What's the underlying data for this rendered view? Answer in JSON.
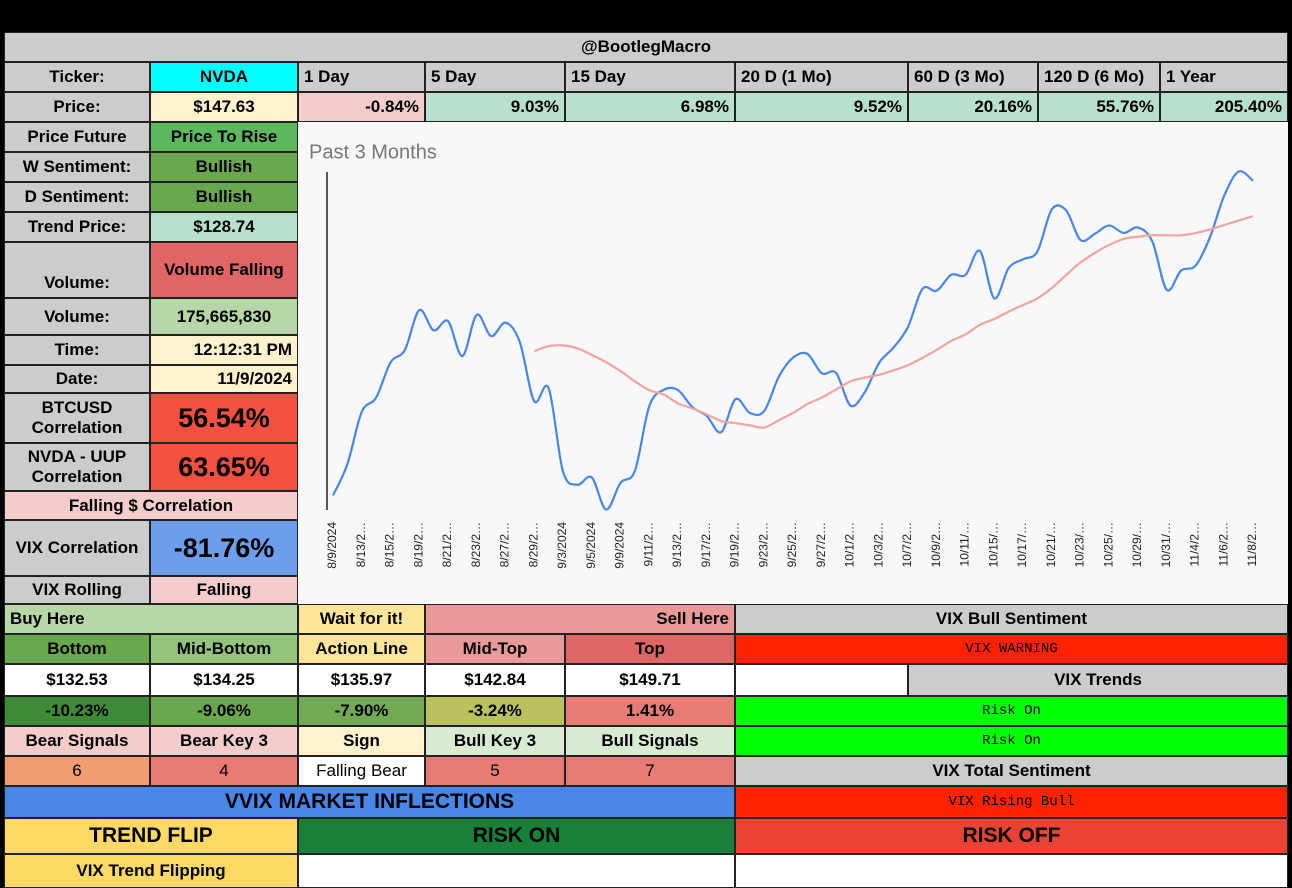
{
  "header": {
    "title": "@BootlegMacro"
  },
  "quote": {
    "ticker_label": "Ticker:",
    "ticker": "NVDA",
    "price_label": "Price:",
    "price": "$147.63",
    "periods": [
      "1 Day",
      "5 Day",
      "15 Day",
      "20 D (1 Mo)",
      "60 D (3 Mo)",
      "120 D (6 Mo)",
      "1 Year"
    ],
    "changes": [
      "-0.84%",
      "9.03%",
      "6.98%",
      "9.52%",
      "20.16%",
      "55.76%",
      "205.40%"
    ]
  },
  "indicators": [
    {
      "label": "Price Future",
      "value": "Price To Rise"
    },
    {
      "label": "W Sentiment:",
      "value": "Bullish"
    },
    {
      "label": "D Sentiment:",
      "value": "Bullish"
    },
    {
      "label": "Trend Price:",
      "value": "$128.74"
    },
    {
      "label": "Volume:",
      "value": "Volume Falling"
    },
    {
      "label": "Volume:",
      "value": "175,665,830"
    },
    {
      "label": "Time:",
      "value": "12:12:31 PM"
    },
    {
      "label": "Date:",
      "value": "11/9/2024"
    },
    {
      "label": "BTCUSD Correlation",
      "value": "56.54%"
    },
    {
      "label": "NVDA - UUP Correlation",
      "value": "63.65%"
    },
    {
      "label": "Falling $ Correlation"
    },
    {
      "label": "VIX Correlation",
      "value": "-81.76%"
    },
    {
      "label": "VIX Rolling",
      "value": "Falling"
    }
  ],
  "zones": {
    "buy": "Buy Here",
    "wait": "Wait for it!",
    "sell": "Sell Here",
    "levels": [
      {
        "name": "Bottom",
        "price": "$132.53",
        "change": "-10.23%"
      },
      {
        "name": "Mid-Bottom",
        "price": "$134.25",
        "change": "-9.06%"
      },
      {
        "name": "Action Line",
        "price": "$135.97",
        "change": "-7.90%"
      },
      {
        "name": "Mid-Top",
        "price": "$142.84",
        "change": "-3.24%"
      },
      {
        "name": "Top",
        "price": "$149.71",
        "change": "1.41%"
      }
    ]
  },
  "signals": {
    "headers": [
      "Bear Signals",
      "Bear Key 3",
      "Sign",
      "Bull Key 3",
      "Bull Signals"
    ],
    "values": [
      6,
      4,
      "Falling Bear",
      5,
      7
    ]
  },
  "vix": {
    "bull_sentiment": "VIX Bull Sentiment",
    "warning": "VIX WARNING",
    "trends": "VIX Trends",
    "trend_values": [
      "Risk On",
      "Risk On"
    ],
    "total_sentiment": "VIX Total Sentiment",
    "total_value": "VIX Rising Bull"
  },
  "inflections": {
    "title": "VVIX MARKET INFLECTIONS",
    "trend_flip": "TREND FLIP",
    "risk_on": "RISK ON",
    "risk_off": "RISK OFF",
    "status": "VIX Trend Flipping"
  },
  "chart_data": {
    "type": "line",
    "title": "Past 3 Months",
    "categories": [
      "8/9/2024",
      null,
      "8/13/2…",
      null,
      "8/15/2…",
      null,
      "8/19/2…",
      null,
      "8/21/2…",
      null,
      "8/23/2…",
      null,
      "8/27/2…",
      null,
      "8/29/2…",
      null,
      "9/3/2024",
      null,
      "9/5/2024",
      null,
      "9/9/2024",
      null,
      "9/11/2…",
      null,
      "9/13/2…",
      null,
      "9/17/2…",
      null,
      "9/19/2…",
      null,
      "9/23/2…",
      null,
      "9/25/2…",
      null,
      "9/27/2…",
      null,
      "10/1/2…",
      null,
      "10/3/2…",
      null,
      "10/7/2…",
      null,
      "10/9/2…",
      null,
      "10/11/…",
      null,
      "10/15/…",
      null,
      "10/17/…",
      null,
      "10/21/…",
      null,
      "10/23/…",
      null,
      "10/25/…",
      null,
      "10/29/…",
      null,
      "10/31/…",
      null,
      "11/4/2…",
      null,
      "11/6/2…",
      null,
      "11/8/2…"
    ],
    "series": [
      {
        "color": "#4a86e8",
        "values": [
          104.75,
          109.02,
          116.14,
          118.08,
          122.86,
          124.58,
          130.0,
          127.25,
          128.5,
          123.74,
          129.37,
          126.46,
          128.3,
          125.61,
          117.59,
          119.37,
          108.0,
          106.21,
          107.21,
          102.83,
          106.47,
          108.1,
          116.91,
          119.14,
          119.1,
          116.78,
          115.59,
          113.37,
          117.87,
          116.0,
          116.26,
          120.87,
          123.51,
          124.04,
          121.4,
          121.44,
          117.0,
          118.85,
          122.85,
          124.92,
          127.72,
          132.89,
          132.65,
          134.81,
          134.8,
          138.07,
          131.6,
          135.72,
          136.93,
          138.0,
          143.71,
          143.59,
          139.56,
          140.41,
          141.54,
          140.52,
          141.25,
          139.34,
          132.76,
          135.4,
          136.05,
          139.91,
          145.61,
          148.88,
          147.63
        ]
      },
      {
        "color": "#f4a3a0",
        "values": [
          null,
          null,
          null,
          null,
          null,
          null,
          null,
          null,
          null,
          null,
          null,
          null,
          null,
          null,
          124.4,
          125.1,
          125.2,
          124.8,
          123.9,
          122.9,
          121.7,
          120.3,
          119.1,
          118.5,
          117.3,
          116.6,
          115.8,
          114.9,
          114.6,
          114.3,
          114.0,
          115.0,
          116.0,
          117.2,
          118.1,
          119.2,
          120.3,
          120.8,
          121.2,
          121.8,
          122.5,
          123.5,
          124.6,
          125.8,
          126.7,
          128.0,
          128.8,
          129.8,
          130.7,
          131.6,
          133.0,
          134.8,
          136.5,
          137.8,
          138.9,
          139.7,
          140.0,
          140.2,
          140.2,
          140.2,
          140.5,
          141.0,
          141.6,
          142.2,
          142.8
        ]
      }
    ],
    "ylim": [
      101,
      151
    ]
  }
}
